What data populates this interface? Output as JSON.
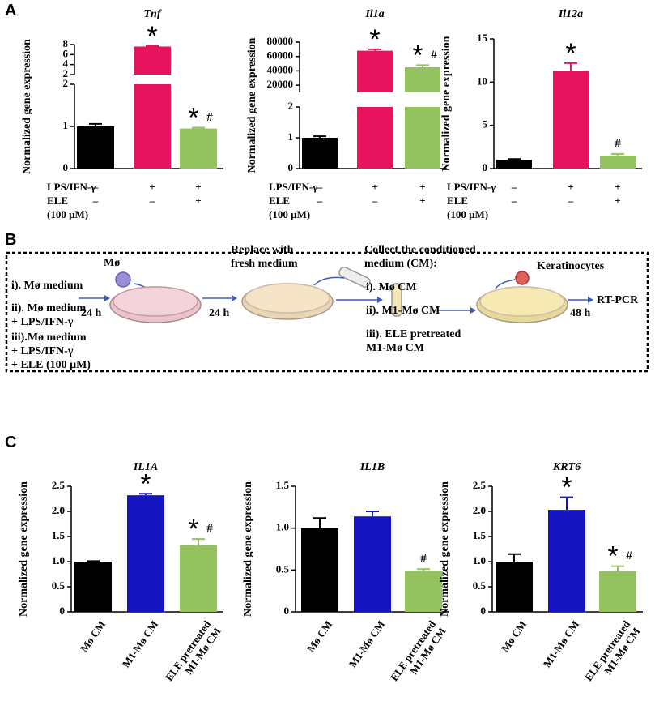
{
  "panel_labels": [
    "A",
    "B",
    "C"
  ],
  "chart_data": [
    {
      "type": "bar",
      "title": "Tnf",
      "ylabel": "Normalized gene expression",
      "segments": [
        {
          "ylim": [
            0,
            2
          ],
          "yticks": [
            0,
            1,
            2
          ]
        },
        {
          "ylim": [
            2,
            8
          ],
          "yticks": [
            2,
            4,
            6,
            8
          ]
        }
      ],
      "values": [
        1.0,
        7.6,
        0.95
      ],
      "errors": [
        0.06,
        0.1,
        0.02
      ],
      "colors": [
        "#000000",
        "#e8135f",
        "#93c25f"
      ],
      "labels": [
        [],
        [
          "*"
        ],
        [
          "*",
          "#"
        ]
      ],
      "treatments": [
        {
          "name": "LPS/IFN-γ",
          "marks": [
            "–",
            "+",
            "+"
          ]
        },
        {
          "name": "ELE",
          "marks": [
            "–",
            "–",
            "+"
          ]
        }
      ],
      "treatment_note": "(100 μM)"
    },
    {
      "type": "bar",
      "title": "Il1a",
      "ylabel": "Normalized gene expression",
      "segments": [
        {
          "ylim": [
            0,
            2
          ],
          "yticks": [
            0,
            1,
            2
          ]
        },
        {
          "ylim": [
            10000,
            80000
          ],
          "yticks": [
            20000,
            40000,
            60000,
            80000
          ]
        }
      ],
      "values": [
        1.0,
        68000,
        45000
      ],
      "errors": [
        0.05,
        2000,
        3000
      ],
      "colors": [
        "#000000",
        "#e8135f",
        "#93c25f"
      ],
      "labels": [
        [],
        [
          "*"
        ],
        [
          "*",
          "#"
        ]
      ],
      "treatments": [
        {
          "name": "LPS/IFN-γ",
          "marks": [
            "–",
            "+",
            "+"
          ]
        },
        {
          "name": "ELE",
          "marks": [
            "–",
            "–",
            "+"
          ]
        }
      ],
      "treatment_note": "(100 μM)"
    },
    {
      "type": "bar",
      "title": "Il12a",
      "ylabel": "Normalized gene expression",
      "ylim": [
        0,
        15
      ],
      "yticks": [
        0,
        5,
        10,
        15
      ],
      "values": [
        1.0,
        11.3,
        1.5
      ],
      "errors": [
        0.1,
        0.9,
        0.2
      ],
      "colors": [
        "#000000",
        "#e8135f",
        "#93c25f"
      ],
      "labels": [
        [],
        [
          "*"
        ],
        [
          "#"
        ]
      ],
      "treatments": [
        {
          "name": "LPS/IFN-γ",
          "marks": [
            "–",
            "+",
            "+"
          ]
        },
        {
          "name": "ELE",
          "marks": [
            "–",
            "–",
            "+"
          ]
        }
      ],
      "treatment_note": "(100 μM)"
    },
    {
      "type": "bar",
      "title": "IL1A",
      "ylabel": "Normalized gene expression",
      "categories": [
        "Mø CM",
        "M1-Mø CM",
        "ELE pretreated\nM1-Mø CM"
      ],
      "ylim": [
        0,
        2.5
      ],
      "yticks": [
        0,
        0.5,
        {
          "value": 1,
          "label": "1.0"
        },
        1.5,
        {
          "value": 2,
          "label": "2.0"
        },
        2.5
      ],
      "values": [
        1.0,
        2.32,
        1.33
      ],
      "errors": [
        0.01,
        0.03,
        0.12
      ],
      "colors": [
        "#000000",
        "#1414c0",
        "#93c25f"
      ],
      "labels": [
        [],
        [
          "*"
        ],
        [
          "*",
          "#"
        ]
      ]
    },
    {
      "type": "bar",
      "title": "IL1B",
      "ylabel": "Normalized gene expression",
      "categories": [
        "Mø CM",
        "M1-Mø CM",
        "ELE pretreated\nM1-Mø CM"
      ],
      "ylim": [
        0,
        1.5
      ],
      "yticks": [
        0,
        0.5,
        {
          "value": 1,
          "label": "1.0"
        },
        1.5
      ],
      "values": [
        1.0,
        1.14,
        0.49
      ],
      "errors": [
        0.12,
        0.06,
        0.02
      ],
      "colors": [
        "#000000",
        "#1414c0",
        "#93c25f"
      ],
      "labels": [
        [],
        [],
        [
          "#"
        ]
      ]
    },
    {
      "type": "bar",
      "title": "KRT6",
      "ylabel": "Normalized gene expression",
      "categories": [
        "Mø CM",
        "M1-Mø CM",
        "ELE pretreated\nM1-Mø CM"
      ],
      "ylim": [
        0,
        2.5
      ],
      "yticks": [
        0,
        0.5,
        {
          "value": 1,
          "label": "1.0"
        },
        1.5,
        {
          "value": 2,
          "label": "2.0"
        },
        2.5
      ],
      "values": [
        1.0,
        2.03,
        0.81
      ],
      "errors": [
        0.15,
        0.25,
        0.1
      ],
      "colors": [
        "#000000",
        "#1414c0",
        "#93c25f"
      ],
      "labels": [
        [],
        [
          "*"
        ],
        [
          "*",
          "#"
        ]
      ]
    }
  ],
  "workflow": {
    "conditions": [
      "i). Mø medium",
      "ii). Mø medium\n+ LPS/IFN-γ",
      "iii).Mø medium\n+ LPS/IFN-γ\n+ ELE (100 μM)"
    ],
    "cell": "Mø",
    "step1": "24 h",
    "replace": "Replace with\nfresh medium",
    "step2": "24 h",
    "collect": "Collect the conditioned\n medium (CM):",
    "cm": [
      "i). Mø CM",
      "ii). M1-Mø CM",
      "iii). ELE pretreated\nM1-Mø CM"
    ],
    "keratinocytes": "Keratinocytes",
    "step3": "48 h",
    "readout": "RT-PCR"
  }
}
